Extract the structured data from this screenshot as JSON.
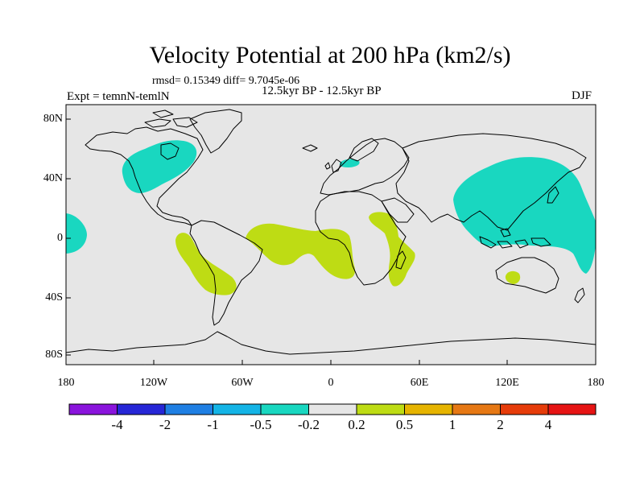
{
  "title": "Velocity Potential at 200 hPa (km2/s)",
  "stats": "rmsd= 0.15349 diff= 9.7045e-06",
  "period": "12.5kyr BP - 12.5kyr BP",
  "experiment": "Expt = temnN-temlN",
  "season": "DJF",
  "map": {
    "background_color": "#e6e6e6",
    "coast_color": "#000000",
    "y_axis_labels": [
      "80N",
      "40N",
      "0",
      "40S",
      "80S"
    ],
    "x_axis_labels": [
      "180",
      "120W",
      "60W",
      "0",
      "60E",
      "120E",
      "180"
    ]
  },
  "colorbar": {
    "colors": [
      "#8a14dc",
      "#2626d6",
      "#1f7fe3",
      "#14b4e6",
      "#19d7c0",
      "#e6e6e6",
      "#bedc14",
      "#e6b400",
      "#e67814",
      "#e63c0a",
      "#e61414"
    ],
    "labels": [
      "-4",
      "-2",
      "-1",
      "-0.5",
      "-0.2",
      "0.2",
      "0.5",
      "1",
      "2",
      "4"
    ]
  },
  "regions": [
    {
      "name": "north-america-negative",
      "level": "-0.5 to -0.2",
      "color": "#19d7c0"
    },
    {
      "name": "east-pacific-negative",
      "level": "-0.5 to -0.2",
      "color": "#19d7c0"
    },
    {
      "name": "north-sea-negative",
      "level": "-0.5 to -0.2",
      "color": "#19d7c0"
    },
    {
      "name": "west-pacific-asia-negative",
      "level": "-0.5 to -0.2",
      "color": "#19d7c0"
    },
    {
      "name": "south-america-positive",
      "level": "0.2 to 0.5",
      "color": "#bedc14"
    },
    {
      "name": "south-atlantic-positive",
      "level": "0.2 to 0.5",
      "color": "#bedc14"
    },
    {
      "name": "africa-positive",
      "level": "0.2 to 0.5",
      "color": "#bedc14"
    },
    {
      "name": "australia-positive",
      "level": "0.2 to 0.5",
      "color": "#bedc14"
    }
  ]
}
